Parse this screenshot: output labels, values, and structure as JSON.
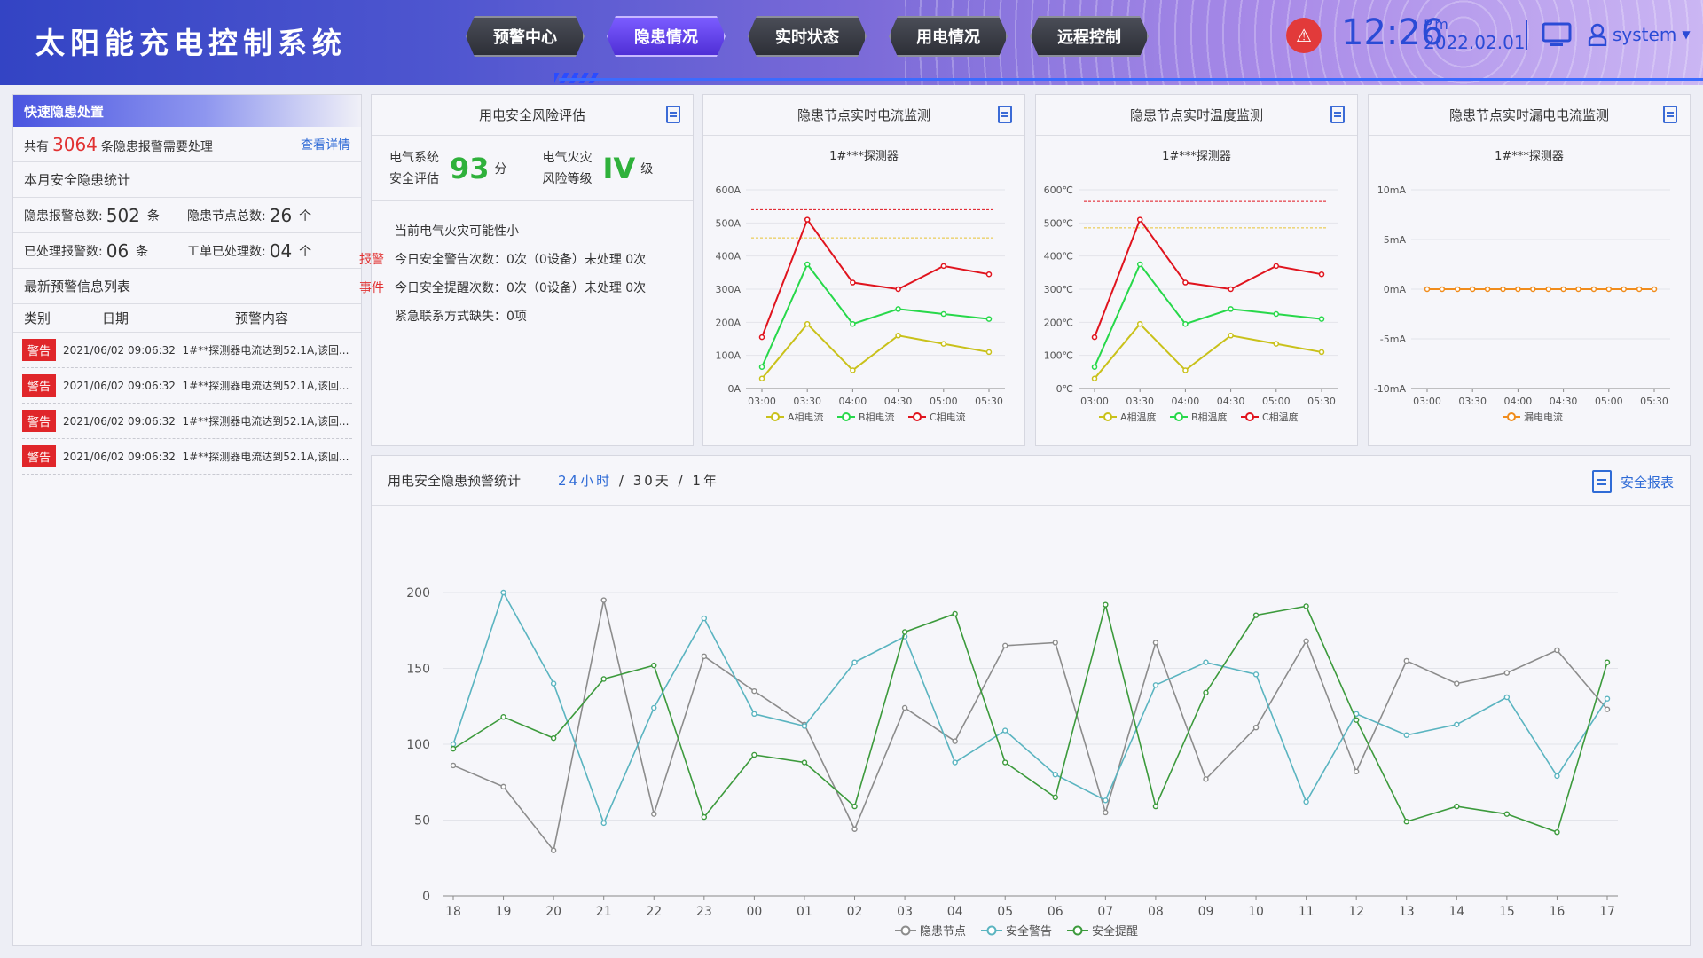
{
  "header": {
    "title": "太阳能充电控制系统",
    "nav": [
      "预警中心",
      "隐患情况",
      "实时状态",
      "用电情况",
      "远程控制"
    ],
    "active_nav": 1,
    "time": "12:26",
    "ampm": "P.m",
    "date": "2022.02.01",
    "user": "system"
  },
  "left": {
    "title": "快速隐患处置",
    "summary_prefix": "共有",
    "summary_count": "3064",
    "summary_suffix": "条隐患报警需要处理",
    "detail_link": "查看详情",
    "month_title": "本月安全隐患统计",
    "stats": [
      {
        "label": "隐患报警总数:",
        "value": "502",
        "unit": "条"
      },
      {
        "label": "隐患节点总数:",
        "value": "26",
        "unit": "个"
      },
      {
        "label": "已处理报警数:",
        "value": "06",
        "unit": "条"
      },
      {
        "label": "工单已处理数:",
        "value": "04",
        "unit": "个"
      }
    ],
    "list_title": "最新预警信息列表",
    "columns": [
      "类别",
      "日期",
      "预警内容"
    ],
    "alerts": [
      {
        "tag": "警告",
        "date": "2021/06/02 09:06:32",
        "content": "1#**探测器电流达到52.1A,该回..."
      },
      {
        "tag": "警告",
        "date": "2021/06/02 09:06:32",
        "content": "1#**探测器电流达到52.1A,该回..."
      },
      {
        "tag": "警告",
        "date": "2021/06/02 09:06:32",
        "content": "1#**探测器电流达到52.1A,该回..."
      },
      {
        "tag": "警告",
        "date": "2021/06/02 09:06:32",
        "content": "1#**探测器电流达到52.1A,该回..."
      }
    ]
  },
  "risk": {
    "title": "用电安全风险评估",
    "l1a": "电气系统",
    "l1b": "安全评估",
    "score": "93",
    "score_unit": "分",
    "l2a": "电气火灾",
    "l2b": "风险等级",
    "level": "IV",
    "level_unit": "级",
    "line1": "当前电气火灾可能性小",
    "line2": "今日安全警告次数：0次（0设备）未处理 0次",
    "line3": "今日安全提醒次数：0次（0设备）未处理 0次",
    "line4": "紧急联系方式缺失：0项",
    "side1": "报警",
    "side2": "事件"
  },
  "colors": {
    "a": "#c9c11a",
    "b": "#27d84a",
    "c": "#e0141e",
    "leak": "#f08c1c",
    "gray": "#8c8c8c",
    "teal": "#5ab4c0",
    "green": "#3c9a3c"
  },
  "chart_data": [
    {
      "type": "line",
      "title": "隐患节点实时电流监测",
      "subtitle": "1#***探测器",
      "categories": [
        "03:00",
        "03:30",
        "04:00",
        "04:30",
        "05:00",
        "05:30"
      ],
      "y_ticks": [
        "0A",
        "100A",
        "200A",
        "300A",
        "400A",
        "500A",
        "600A"
      ],
      "ylim": [
        0,
        600
      ],
      "thresholds": [
        540,
        455
      ],
      "series": [
        {
          "name": "A相电流",
          "x": [
            0,
            1,
            2,
            3,
            4,
            5
          ],
          "values": [
            30,
            195,
            55,
            160,
            135,
            110
          ]
        },
        {
          "name": "B相电流",
          "x": [
            0,
            1,
            2,
            3,
            4,
            5
          ],
          "values": [
            65,
            375,
            195,
            240,
            225,
            210
          ]
        },
        {
          "name": "C相电流",
          "x": [
            0,
            1,
            2,
            3,
            4,
            5
          ],
          "values": [
            155,
            510,
            320,
            300,
            370,
            345
          ]
        }
      ]
    },
    {
      "type": "line",
      "title": "隐患节点实时温度监测",
      "subtitle": "1#***探测器",
      "categories": [
        "03:00",
        "03:30",
        "04:00",
        "04:30",
        "05:00",
        "05:30"
      ],
      "y_ticks": [
        "0℃",
        "100℃",
        "200℃",
        "300℃",
        "400℃",
        "500℃",
        "600℃"
      ],
      "ylim": [
        0,
        600
      ],
      "thresholds": [
        565,
        485
      ],
      "series": [
        {
          "name": "A相温度",
          "x": [
            0,
            1,
            2,
            3,
            4,
            5
          ],
          "values": [
            30,
            195,
            55,
            160,
            135,
            110
          ]
        },
        {
          "name": "B相温度",
          "x": [
            0,
            1,
            2,
            3,
            4,
            5
          ],
          "values": [
            65,
            375,
            195,
            240,
            225,
            210
          ]
        },
        {
          "name": "C相温度",
          "x": [
            0,
            1,
            2,
            3,
            4,
            5
          ],
          "values": [
            155,
            510,
            320,
            300,
            370,
            345
          ]
        }
      ]
    },
    {
      "type": "line",
      "title": "隐患节点实时漏电电流监测",
      "subtitle": "1#***探测器",
      "categories": [
        "03:00",
        "03:30",
        "04:00",
        "04:30",
        "05:00",
        "05:30"
      ],
      "y_ticks": [
        "-10mA",
        "-5mA",
        "0mA",
        "5mA",
        "10mA"
      ],
      "ylim": [
        -10,
        10
      ],
      "series": [
        {
          "name": "漏电电流",
          "x": [
            0,
            0.33,
            0.67,
            1,
            1.33,
            1.67,
            2,
            2.33,
            2.67,
            3,
            3.33,
            3.67,
            4,
            4.33,
            4.67,
            5
          ],
          "values": [
            0,
            0,
            0,
            0,
            0,
            0,
            0,
            0,
            0,
            0,
            0,
            0,
            0,
            0,
            0,
            0
          ]
        }
      ]
    },
    {
      "type": "line",
      "title": "用电安全隐患预警统计",
      "categories": [
        "18",
        "19",
        "20",
        "21",
        "22",
        "23",
        "00",
        "01",
        "02",
        "03",
        "04",
        "05",
        "06",
        "07",
        "08",
        "09",
        "10",
        "11",
        "12",
        "13",
        "14",
        "15",
        "16",
        "17"
      ],
      "y_ticks": [
        "0",
        "50",
        "100",
        "150",
        "200"
      ],
      "ylim": [
        0,
        200
      ],
      "series": [
        {
          "name": "隐患节点",
          "values": [
            86,
            72,
            30,
            195,
            54,
            158,
            135,
            113,
            44,
            124,
            102,
            165,
            167,
            55,
            167,
            77,
            111,
            168,
            82,
            155,
            140,
            147,
            162,
            123
          ]
        },
        {
          "name": "安全警告",
          "values": [
            100,
            200,
            140,
            48,
            124,
            183,
            120,
            112,
            154,
            171,
            88,
            109,
            80,
            63,
            139,
            154,
            146,
            62,
            120,
            106,
            113,
            131,
            79,
            130
          ]
        },
        {
          "name": "安全提醒",
          "values": [
            97,
            118,
            104,
            143,
            152,
            52,
            93,
            88,
            59,
            174,
            186,
            88,
            65,
            192,
            59,
            134,
            185,
            191,
            116,
            49,
            59,
            54,
            42,
            154
          ]
        }
      ]
    }
  ],
  "big": {
    "range_24h": "24小时",
    "range_rest": " / 30天 / 1年",
    "report": "安全报表"
  }
}
